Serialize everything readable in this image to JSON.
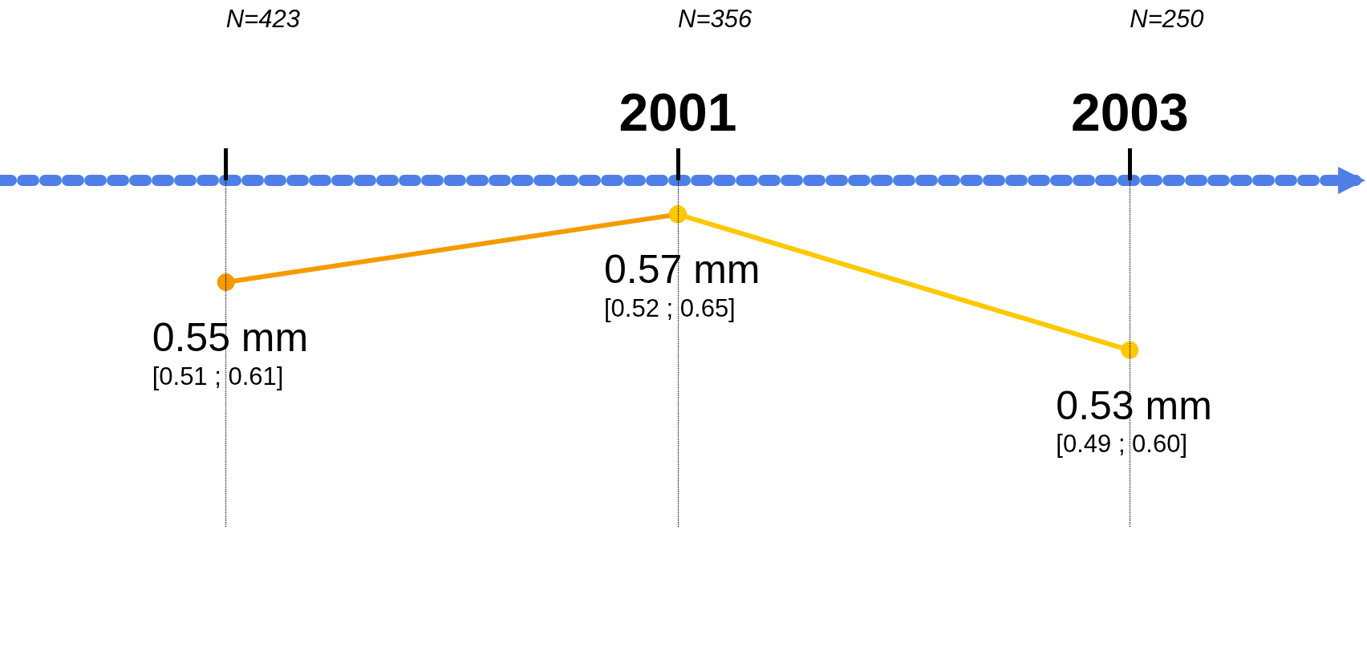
{
  "chart_data": {
    "type": "line",
    "categories": [
      null,
      "2001",
      "2003"
    ],
    "series": [
      {
        "color": "#f59b00",
        "values": [
          0.55,
          0.57,
          null
        ],
        "value_labels": [
          "0.55 mm\n[0.51 ; 0.61]",
          "0.57 mm\n[0.52 ; 0.65]",
          null
        ]
      },
      {
        "color": "#ffc800",
        "values": [
          null,
          0.57,
          0.53
        ],
        "value_labels": [
          null,
          null,
          "0.53 mm\n[0.49 ; 0.60]"
        ]
      }
    ],
    "annotations": [
      "N=423",
      "N=356",
      "N=250"
    ],
    "marker": "circle",
    "grid": "x"
  }
}
